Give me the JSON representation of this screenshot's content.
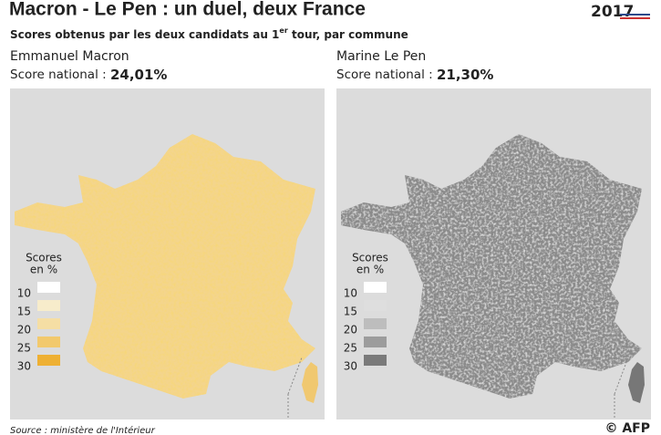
{
  "header": {
    "title": "Macron - Le Pen : un duel, deux France",
    "subtitle": {
      "before": "Scores obtenus par les deux candidats au 1",
      "sup": "er",
      "after": " tour, par commune"
    },
    "logo_year": "2017"
  },
  "panels": [
    {
      "candidate": "Emmanuel Macron",
      "score_label": "Score national :",
      "score": "24,01%",
      "legend": {
        "title": [
          "Scores",
          "en %"
        ],
        "ticks": [
          10,
          15,
          20,
          25,
          30
        ]
      }
    },
    {
      "candidate": "Marine Le Pen",
      "score_label": "Score national :",
      "score": "21,30%",
      "legend": {
        "title": [
          "Scores",
          "en %"
        ],
        "ticks": [
          10,
          15,
          20,
          25,
          30
        ]
      }
    }
  ],
  "footer": {
    "source": "Source : ministère de l'Intérieur",
    "credit": "© AFP"
  }
}
